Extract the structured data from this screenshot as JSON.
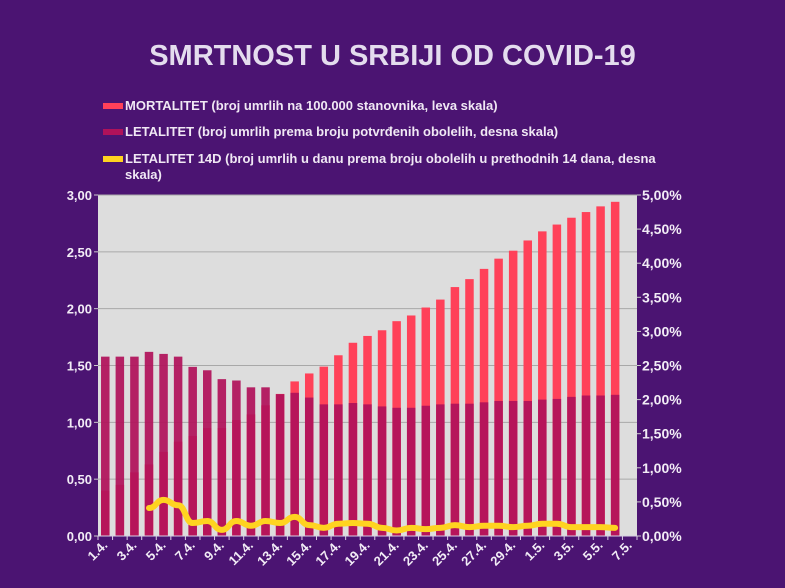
{
  "chart_data": {
    "type": "bar",
    "title": "SMRTNOST U SRBIJI OD COVID-19",
    "categories": [
      "1.4.",
      "2.4.",
      "3.4.",
      "4.4.",
      "5.4.",
      "6.4.",
      "7.4.",
      "8.4.",
      "9.4.",
      "10.4.",
      "11.4.",
      "12.4.",
      "13.4.",
      "14.4.",
      "15.4.",
      "16.4.",
      "17.4.",
      "18.4.",
      "19.4.",
      "20.4.",
      "21.4.",
      "22.4.",
      "23.4.",
      "24.4.",
      "25.4.",
      "26.4.",
      "27.4.",
      "28.4.",
      "29.4.",
      "30.4.",
      "1.5.",
      "2.5.",
      "3.5.",
      "4.5.",
      "5.5.",
      "6.5.",
      "7.5."
    ],
    "tick_labels": [
      "1.4.",
      "3.4.",
      "5.4.",
      "7.4.",
      "9.4.",
      "11.4.",
      "13.4.",
      "15.4.",
      "17.4.",
      "19.4.",
      "21.4.",
      "23.4.",
      "25.4.",
      "27.4.",
      "29.4.",
      "1.5.",
      "3.5.",
      "5.5.",
      "7.5."
    ],
    "left_axis": {
      "range": [
        0,
        3
      ],
      "ticks": [
        "0,00",
        "0,50",
        "1,00",
        "1,50",
        "2,00",
        "2,50",
        "3,00"
      ]
    },
    "right_axis": {
      "range": [
        0,
        5
      ],
      "unit": "%",
      "ticks": [
        "0,00%",
        "0,50%",
        "1,00%",
        "1,50%",
        "2,00%",
        "2,50%",
        "3,00%",
        "3,50%",
        "4,00%",
        "4,50%",
        "5,00%"
      ]
    },
    "grid": true,
    "legend_position": "top",
    "series": [
      {
        "name": "MORTALITET (broj umrlih na 100.000 stanovnika, leva skala)",
        "type": "bar",
        "axis": "left",
        "color": "#ff4159",
        "values": [
          0.4,
          0.45,
          0.56,
          0.63,
          0.74,
          0.83,
          0.88,
          0.95,
          0.95,
          1.02,
          1.07,
          1.15,
          1.25,
          1.36,
          1.43,
          1.49,
          1.59,
          1.7,
          1.76,
          1.81,
          1.89,
          1.94,
          2.01,
          2.08,
          2.19,
          2.26,
          2.35,
          2.44,
          2.51,
          2.6,
          2.68,
          2.74,
          2.8,
          2.85,
          2.9,
          2.94,
          null
        ]
      },
      {
        "name": "LETALITET (broj umrlih prema broju potvrđenih obolelih, desna skala)",
        "type": "bar",
        "axis": "right",
        "color": "#b0125a",
        "values": [
          2.63,
          2.63,
          2.63,
          2.7,
          2.67,
          2.63,
          2.48,
          2.43,
          2.3,
          2.28,
          2.18,
          2.18,
          2.08,
          2.1,
          2.03,
          1.93,
          1.93,
          1.95,
          1.93,
          1.9,
          1.88,
          1.88,
          1.91,
          1.93,
          1.94,
          1.94,
          1.96,
          1.98,
          1.98,
          1.98,
          2.0,
          2.01,
          2.04,
          2.06,
          2.06,
          2.07,
          null
        ]
      },
      {
        "name": "LETALITET 14D (broj umrlih u danu prema broju obolelih u prethodnih 14 dana, desna skala)",
        "type": "line",
        "axis": "right",
        "color": "#ffd320",
        "values": [
          null,
          null,
          null,
          0.41,
          0.53,
          0.45,
          0.19,
          0.22,
          0.09,
          0.22,
          0.15,
          0.22,
          0.19,
          0.28,
          0.16,
          0.12,
          0.18,
          0.19,
          0.18,
          0.12,
          0.08,
          0.12,
          0.1,
          0.12,
          0.16,
          0.13,
          0.15,
          0.15,
          0.13,
          0.15,
          0.18,
          0.18,
          0.13,
          0.13,
          0.13,
          0.12,
          null
        ]
      }
    ]
  }
}
